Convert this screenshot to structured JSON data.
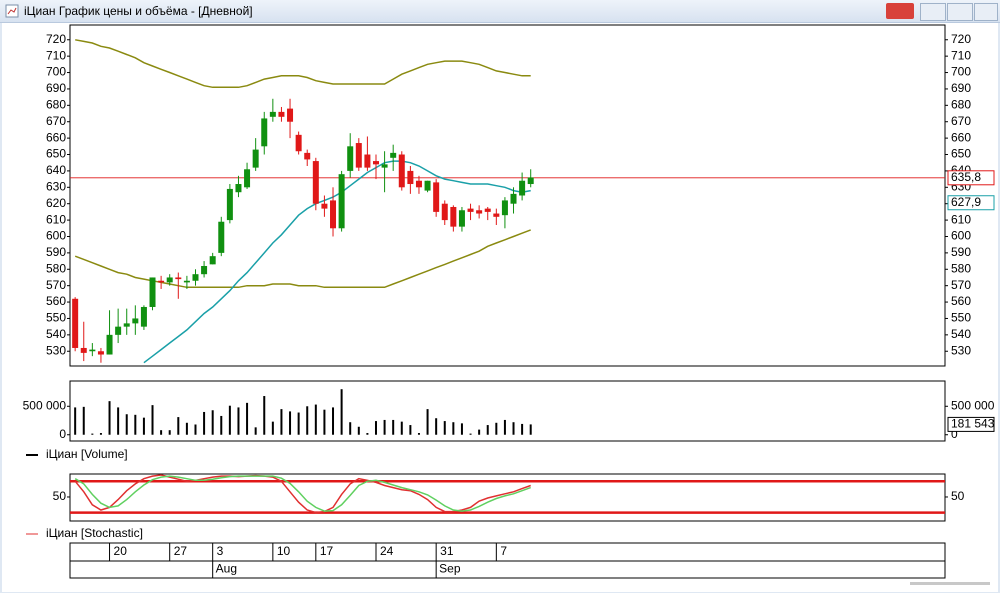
{
  "window": {
    "title": "iЦиан График цены и объёма - [Дневной]"
  },
  "chart_data": [
    {
      "type": "candlestick",
      "up_color": "#109010",
      "down_color": "#e01818",
      "xlim": [
        -0.6,
        101.2
      ],
      "ylim": [
        521,
        729
      ],
      "yticks": [
        530,
        540,
        550,
        560,
        570,
        580,
        590,
        600,
        610,
        620,
        630,
        640,
        650,
        660,
        670,
        680,
        690,
        700,
        710,
        720
      ],
      "open": [
        562,
        532,
        530,
        530,
        528,
        540,
        545,
        547,
        545,
        557,
        573,
        572,
        575,
        572,
        573,
        577,
        583,
        590,
        610,
        627,
        630,
        642,
        655,
        673,
        676,
        678,
        662,
        651,
        646,
        620,
        622,
        605,
        640,
        657,
        650,
        646,
        642,
        648,
        650,
        640,
        634,
        628,
        633,
        620,
        618,
        606,
        617,
        616,
        617,
        614,
        613,
        620,
        625,
        632
      ],
      "high": [
        563,
        548,
        535,
        532,
        555,
        556,
        556,
        558,
        558,
        575,
        576,
        577,
        578,
        576,
        580,
        585,
        590,
        612,
        632,
        637,
        645,
        660,
        676,
        684,
        679,
        684,
        664,
        653,
        648,
        625,
        630,
        640,
        663,
        660,
        661,
        650,
        652,
        656,
        652,
        643,
        637,
        634,
        635,
        622,
        619,
        618,
        620,
        619,
        618,
        617,
        624,
        630,
        639,
        641
      ],
      "low": [
        530,
        524,
        527,
        523,
        528,
        535,
        540,
        540,
        543,
        555,
        568,
        570,
        562,
        568,
        570,
        575,
        583,
        588,
        608,
        624,
        629,
        640,
        650,
        670,
        670,
        660,
        650,
        643,
        616,
        612,
        600,
        603,
        636,
        640,
        640,
        635,
        627,
        640,
        628,
        626,
        626,
        627,
        612,
        607,
        603,
        603,
        610,
        611,
        610,
        607,
        605,
        614,
        622,
        630
      ],
      "close": [
        532,
        529,
        531,
        528,
        540,
        545,
        547,
        550,
        557,
        575,
        572,
        575,
        574,
        573,
        577,
        582,
        588,
        609,
        629,
        632,
        641,
        653,
        672,
        676,
        673,
        670,
        652,
        647,
        620,
        617,
        605,
        638,
        655,
        642,
        642,
        644,
        644,
        651,
        630,
        632,
        630,
        634,
        615,
        610,
        606,
        616,
        615,
        614,
        615,
        612,
        622,
        626,
        634,
        636
      ],
      "last_price": {
        "value": 635.8,
        "label": "635,8",
        "color": "#e01818"
      },
      "lines": [
        {
          "color": "#8a8a10",
          "values": [
            720,
            719,
            718,
            716,
            715,
            713,
            711,
            709,
            706,
            704,
            702,
            700,
            698,
            696,
            694,
            692,
            691,
            691,
            691,
            691,
            692,
            694,
            696,
            697,
            698,
            698,
            698,
            697,
            695,
            694,
            693,
            693,
            693,
            693,
            693,
            693,
            693,
            696,
            699,
            701,
            703,
            705,
            706,
            707,
            707,
            707,
            706,
            705,
            703,
            701,
            700,
            699,
            698,
            698
          ]
        },
        {
          "color": "#8a8a10",
          "values": [
            588,
            586,
            584,
            582,
            580,
            578,
            577,
            575,
            574,
            573,
            572,
            571,
            570,
            569,
            569,
            569,
            569,
            569,
            569,
            569,
            570,
            570,
            570,
            571,
            571,
            571,
            570,
            570,
            570,
            569,
            569,
            569,
            569,
            569,
            569,
            569,
            569,
            571,
            573,
            575,
            577,
            579,
            581,
            583,
            585,
            587,
            589,
            591,
            594,
            596,
            598,
            600,
            602,
            604
          ]
        },
        {
          "color": "#1aa0a8",
          "last_value": {
            "value": 627.9,
            "label": "627,9"
          },
          "values": [
            null,
            null,
            null,
            null,
            null,
            null,
            null,
            null,
            523,
            527,
            531,
            535,
            539,
            543,
            548,
            553,
            557,
            562,
            567,
            573,
            578,
            584,
            590,
            596,
            601,
            607,
            613,
            617,
            620,
            622,
            624,
            627,
            631,
            635,
            639,
            642,
            645,
            646,
            646,
            645,
            643,
            640,
            637,
            635,
            634,
            633,
            632,
            632,
            632,
            631,
            630,
            628,
            627,
            628
          ]
        }
      ]
    },
    {
      "type": "bar",
      "color": "#000000",
      "xlim": [
        -0.6,
        101.2
      ],
      "ylim": [
        -110000,
        944000
      ],
      "yticks": [
        0,
        {
          "value": 500000,
          "label": "500 000"
        }
      ],
      "series": [
        {
          "name": "iЦиан [Volume]",
          "color": "#000000",
          "values": [
            480000,
            490000,
            20000,
            30000,
            590000,
            480000,
            360000,
            350000,
            300000,
            520000,
            80000,
            80000,
            310000,
            210000,
            180000,
            400000,
            430000,
            330000,
            510000,
            480000,
            560000,
            130000,
            680000,
            230000,
            450000,
            410000,
            390000,
            500000,
            530000,
            440000,
            480000,
            800000,
            220000,
            140000,
            30000,
            240000,
            260000,
            260000,
            230000,
            170000,
            30000,
            450000,
            290000,
            240000,
            220000,
            200000,
            20000,
            90000,
            170000,
            210000,
            260000,
            220000,
            190000,
            181543
          ],
          "last_value": {
            "value": 181543,
            "label": "181 543"
          }
        }
      ]
    },
    {
      "type": "line",
      "xlim": [
        -0.6,
        101.2
      ],
      "ylim": [
        4,
        94
      ],
      "yticks": [
        50
      ],
      "levels": [
        80,
        20
      ],
      "level_color": "#e01818",
      "series": [
        {
          "name": "iЦиан [Stochastic]",
          "color": "#e03030",
          "values": [
            80,
            60,
            35,
            25,
            30,
            45,
            62,
            75,
            85,
            90,
            92,
            88,
            84,
            80,
            82,
            85,
            88,
            90,
            90,
            89,
            90,
            91,
            90,
            88,
            80,
            60,
            40,
            25,
            20,
            22,
            30,
            55,
            75,
            85,
            82,
            78,
            72,
            68,
            64,
            62,
            55,
            45,
            30,
            22,
            22,
            25,
            30,
            42,
            48,
            52,
            56,
            60,
            66,
            72
          ]
        },
        {
          "color": "#60d060",
          "values": [
            85,
            75,
            55,
            38,
            30,
            33,
            45,
            60,
            73,
            83,
            88,
            90,
            88,
            85,
            82,
            82,
            84,
            87,
            89,
            90,
            90,
            90,
            90,
            90,
            86,
            76,
            60,
            42,
            30,
            23,
            24,
            35,
            53,
            72,
            80,
            82,
            78,
            73,
            68,
            64,
            60,
            54,
            44,
            33,
            25,
            23,
            25,
            32,
            40,
            47,
            52,
            56,
            62,
            68
          ]
        }
      ],
      "xticks": [
        {
          "value": 4,
          "label": "20"
        },
        {
          "value": 11,
          "label": "27"
        },
        {
          "value": 16,
          "label": "3"
        },
        {
          "value": 23,
          "label": "10"
        },
        {
          "value": 28,
          "label": "17"
        },
        {
          "value": 35,
          "label": "24"
        },
        {
          "value": 42,
          "label": "31"
        },
        {
          "value": 49,
          "label": "7"
        }
      ],
      "month_ticks": [
        {
          "value": 16,
          "label": "Aug"
        },
        {
          "value": 42,
          "label": "Sep"
        }
      ]
    }
  ]
}
